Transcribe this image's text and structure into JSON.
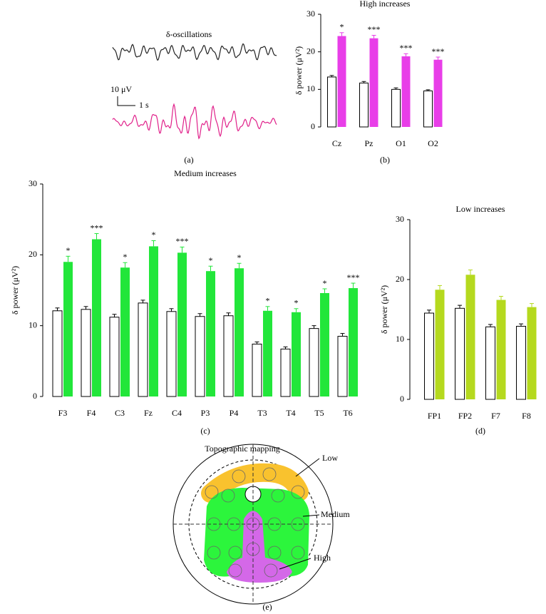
{
  "chart_data": [
    {
      "type": "bar",
      "title": "High increases",
      "caption": "(b)",
      "ylabel": "δ power (μV²)",
      "categories": [
        "Cz",
        "Pz",
        "O1",
        "O2"
      ],
      "series": [
        {
          "color": "#ffffff",
          "values": [
            13.3,
            11.7,
            10.0,
            9.6
          ],
          "errors": [
            0.4,
            0.4,
            0.4,
            0.3
          ]
        },
        {
          "color": "#e83ee8",
          "values": [
            24.2,
            23.6,
            18.8,
            17.9
          ],
          "errors": [
            0.9,
            0.8,
            0.7,
            0.7
          ]
        }
      ],
      "annotations": [
        "*",
        "***",
        "***",
        "***"
      ],
      "ylim": [
        0,
        30
      ],
      "yticks": [
        0,
        10,
        20,
        30
      ]
    },
    {
      "type": "bar",
      "title": "Medium increases",
      "caption": "(c)",
      "ylabel": "δ power (μV²)",
      "categories": [
        "F3",
        "F4",
        "C3",
        "Fz",
        "C4",
        "P3",
        "P4",
        "T3",
        "T4",
        "T5",
        "T6"
      ],
      "series": [
        {
          "color": "#ffffff",
          "values": [
            12.1,
            12.3,
            11.2,
            13.2,
            12.0,
            11.3,
            11.4,
            7.4,
            6.7,
            9.6,
            8.5
          ],
          "errors": [
            0.4,
            0.4,
            0.4,
            0.4,
            0.4,
            0.4,
            0.4,
            0.3,
            0.3,
            0.4,
            0.4
          ]
        },
        {
          "color": "#22e63a",
          "values": [
            19.0,
            22.2,
            18.2,
            21.2,
            20.3,
            17.7,
            18.1,
            12.1,
            11.9,
            14.6,
            15.3
          ],
          "errors": [
            0.8,
            0.8,
            0.7,
            0.8,
            0.8,
            0.7,
            0.7,
            0.6,
            0.5,
            0.6,
            0.7
          ]
        }
      ],
      "annotations": [
        "*",
        "***",
        "*",
        "*",
        "***",
        "*",
        "*",
        "*",
        "*",
        "*",
        "***"
      ],
      "ylim": [
        0,
        30
      ],
      "yticks": [
        0,
        10,
        20,
        30
      ]
    },
    {
      "type": "bar",
      "title": "Low increases",
      "caption": "(d)",
      "ylabel": "δ power (μV²)",
      "categories": [
        "FP1",
        "FP2",
        "F7",
        "F8"
      ],
      "series": [
        {
          "color": "#ffffff",
          "values": [
            14.4,
            15.2,
            12.1,
            12.2
          ],
          "errors": [
            0.5,
            0.5,
            0.4,
            0.4
          ]
        },
        {
          "color": "#b5d91e",
          "values": [
            18.3,
            20.8,
            16.6,
            15.4
          ],
          "errors": [
            0.7,
            0.8,
            0.6,
            0.6
          ]
        }
      ],
      "ylim": [
        0,
        30
      ],
      "yticks": [
        0,
        10,
        20,
        30
      ]
    }
  ],
  "panel_a": {
    "title": "δ-oscillations",
    "scale_y": "10 μV",
    "scale_x": "1 s",
    "caption": "(a)"
  },
  "panel_e": {
    "title": "Topographic mapping",
    "labels": [
      "Low",
      "Medium",
      "High"
    ],
    "caption": "(e)"
  }
}
